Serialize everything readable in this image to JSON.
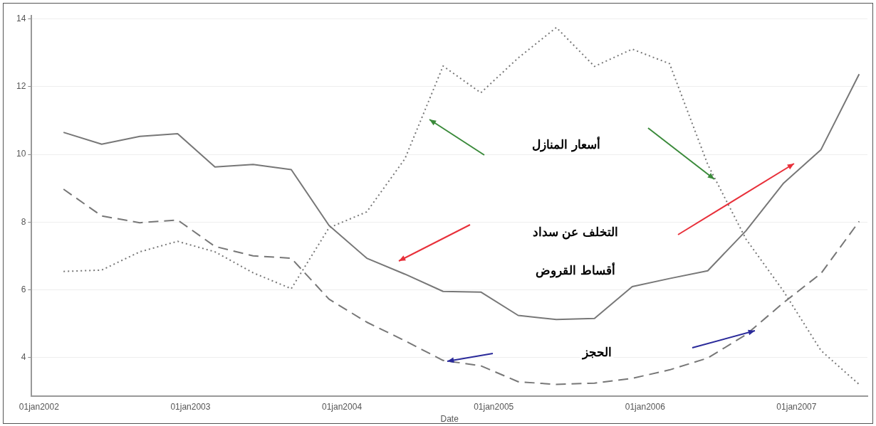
{
  "chart_data": {
    "type": "line",
    "xlabel": "Date",
    "annotations": [
      "أسعار المنازل",
      "التخلف عن سداد أقساط القروض",
      "الحجز"
    ],
    "x": [
      "2002-03-01",
      "2002-06-01",
      "2002-09-01",
      "2002-12-01",
      "2003-03-01",
      "2003-06-01",
      "2003-09-01",
      "2003-12-01",
      "2004-03-01",
      "2004-06-01",
      "2004-09-01",
      "2004-12-01",
      "2005-03-01",
      "2005-06-01",
      "2005-09-01",
      "2005-12-01",
      "2006-03-01",
      "2006-06-01",
      "2006-09-01",
      "2006-12-01",
      "2007-03-01",
      "2007-06-01"
    ],
    "series": [
      {
        "color": "#777777",
        "line_style": "solid",
        "values": [
          10.65,
          10.3,
          10.53,
          10.61,
          9.63,
          9.7,
          9.55,
          7.9,
          6.93,
          6.46,
          5.95,
          5.93,
          5.24,
          5.12,
          5.15,
          6.09,
          6.33,
          6.56,
          7.74,
          9.15,
          10.14,
          12.37
        ]
      },
      {
        "color": "#777777",
        "line_style": "dashed",
        "values": [
          8.97,
          8.18,
          7.98,
          8.06,
          7.28,
          7.0,
          6.93,
          5.72,
          5.04,
          4.49,
          3.91,
          3.75,
          3.28,
          3.2,
          3.24,
          3.38,
          3.63,
          3.98,
          4.67,
          5.62,
          6.48,
          8.02
        ]
      },
      {
        "color": "#777777",
        "line_style": "dotted",
        "values": [
          6.54,
          6.58,
          7.12,
          7.43,
          7.12,
          6.5,
          6.03,
          7.83,
          8.3,
          9.87,
          12.61,
          11.82,
          12.85,
          13.75,
          12.6,
          13.11,
          12.68,
          9.7,
          7.5,
          5.95,
          4.2,
          3.2
        ]
      }
    ],
    "xlim": [
      "2001-12-14",
      "2007-06-21"
    ],
    "xticks": [
      {
        "value": "2002-01-01",
        "label": "01jan2002"
      },
      {
        "value": "2003-01-01",
        "label": "01jan2003"
      },
      {
        "value": "2004-01-01",
        "label": "01jan2004"
      },
      {
        "value": "2005-01-01",
        "label": "01jan2005"
      },
      {
        "value": "2006-01-01",
        "label": "01jan2006"
      },
      {
        "value": "2007-01-01",
        "label": "01jan2007"
      }
    ],
    "ylim": [
      2.85,
      14.1
    ],
    "yticks": [
      4,
      6,
      8,
      10,
      12,
      14
    ],
    "grid": "y",
    "legend": false,
    "marker": "none"
  }
}
